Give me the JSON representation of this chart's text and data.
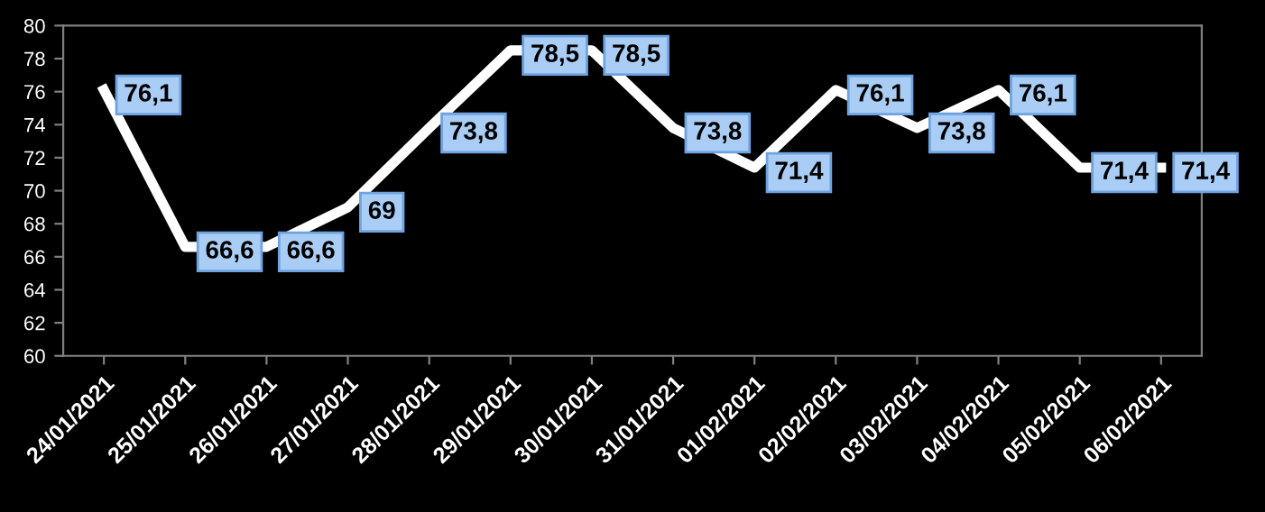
{
  "chart_data": {
    "type": "line",
    "categories": [
      "24/01/2021",
      "25/01/2021",
      "26/01/2021",
      "27/01/2021",
      "28/01/2021",
      "29/01/2021",
      "30/01/2021",
      "31/01/2021",
      "01/02/2021",
      "02/02/2021",
      "03/02/2021",
      "04/02/2021",
      "05/02/2021",
      "06/02/2021"
    ],
    "series": [
      {
        "color": "#ffffff",
        "values": [
          76.1,
          66.6,
          66.6,
          69,
          73.8,
          78.5,
          78.5,
          73.8,
          71.4,
          76.1,
          73.8,
          76.1,
          71.4,
          71.4
        ],
        "value_labels": [
          "76,1",
          "66,6",
          "66,6",
          "69",
          "73,8",
          "78,5",
          "78,5",
          "73,8",
          "71,4",
          "76,1",
          "73,8",
          "76,1",
          "71,4",
          "71,4"
        ]
      }
    ],
    "ylim": [
      60,
      80
    ],
    "yticks": [
      60,
      62,
      64,
      66,
      68,
      70,
      72,
      74,
      76,
      78,
      80
    ],
    "grid": false,
    "legend": false,
    "marker": "none",
    "line_style": "solid"
  }
}
